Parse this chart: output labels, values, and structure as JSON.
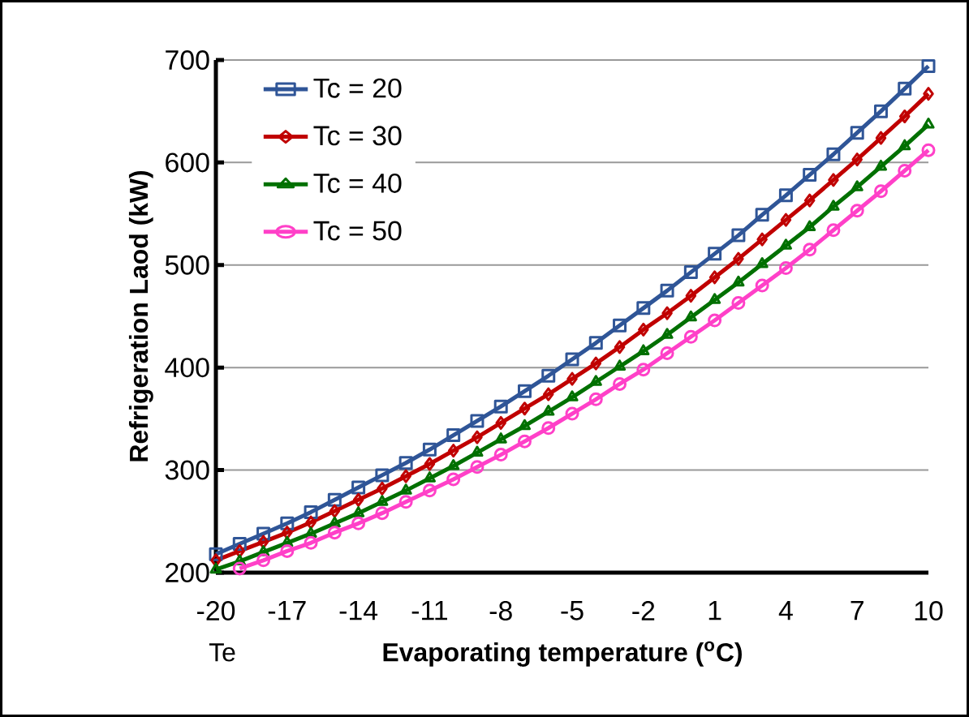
{
  "chart_data": {
    "type": "line",
    "xlabel": "Evaporating temperature ($^{o}$C)",
    "ylabel": "Refrigeration Laod (kW)",
    "annotations": [
      "Te"
    ],
    "x": [
      -20,
      -19,
      -18,
      -17,
      -16,
      -15,
      -14,
      -13,
      -12,
      -11,
      -10,
      -9,
      -8,
      -7,
      -6,
      -5,
      -4,
      -3,
      -2,
      -1,
      0,
      1,
      2,
      3,
      4,
      5,
      6,
      7,
      8,
      9,
      10
    ],
    "xlim": [
      -20,
      10
    ],
    "xticks": [
      -20,
      -17,
      -14,
      -11,
      -8,
      -5,
      -2,
      1,
      4,
      7,
      10
    ],
    "ylim": [
      200,
      700
    ],
    "yticks": [
      200,
      300,
      400,
      500,
      600,
      700
    ],
    "grid": "y",
    "legend": "top left",
    "line_style": "solid",
    "series": [
      {
        "name": "Tc = 20",
        "color": "#2f5597",
        "marker": "square",
        "values": [
          218,
          228,
          238,
          248,
          259,
          271,
          283,
          295,
          307,
          320,
          334,
          348,
          362,
          377,
          392,
          408,
          424,
          441,
          458,
          475,
          493,
          511,
          529,
          549,
          568,
          588,
          608,
          629,
          650,
          672,
          694
        ]
      },
      {
        "name": "Tc = 30",
        "color": "#c00000",
        "marker": "diamond",
        "values": [
          212,
          221,
          230,
          239,
          249,
          260,
          271,
          282,
          294,
          306,
          319,
          332,
          346,
          360,
          374,
          389,
          404,
          420,
          437,
          453,
          470,
          488,
          506,
          525,
          544,
          563,
          583,
          603,
          624,
          645,
          667
        ]
      },
      {
        "name": "Tc = 40",
        "color": "#007000",
        "marker": "triangle",
        "values": [
          203,
          211,
          220,
          229,
          238,
          248,
          258,
          269,
          280,
          292,
          304,
          317,
          330,
          343,
          357,
          371,
          386,
          401,
          416,
          432,
          449,
          466,
          483,
          501,
          519,
          537,
          557,
          576,
          596,
          616,
          637
        ]
      },
      {
        "name": "Tc = 50",
        "color": "#ff40c8",
        "marker": "circle",
        "values": [
          null,
          204,
          212,
          221,
          229,
          239,
          248,
          258,
          269,
          280,
          291,
          303,
          315,
          328,
          341,
          355,
          369,
          384,
          398,
          414,
          430,
          446,
          463,
          480,
          497,
          515,
          534,
          553,
          572,
          592,
          612
        ]
      }
    ]
  }
}
